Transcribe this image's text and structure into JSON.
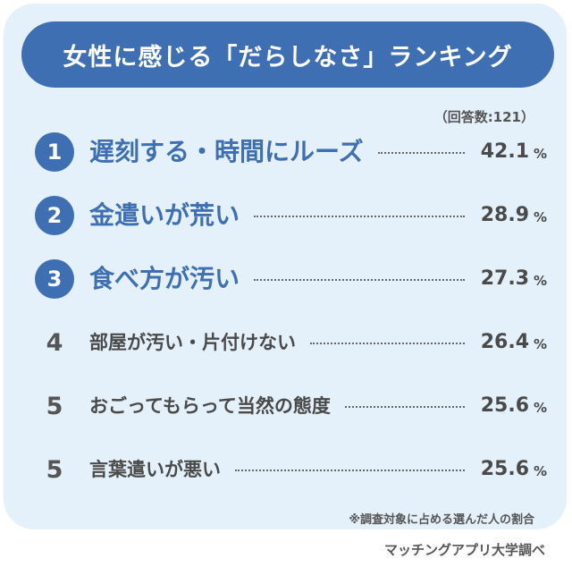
{
  "chart_data": {
    "type": "bar",
    "title": "女性に感じる「だらしなさ」ランキング",
    "respondents_note": "（回答数:121）",
    "unit": "%",
    "categories": [
      "遅刻する・時間にルーズ",
      "金遣いが荒い",
      "食べ方が汚い",
      "部屋が汚い・片付けない",
      "おごってもらって当然の態度",
      "言葉遣いが悪い"
    ],
    "ranks": [
      "1",
      "2",
      "3",
      "4",
      "5",
      "5"
    ],
    "values": [
      42.1,
      28.9,
      27.3,
      26.4,
      25.6,
      25.6
    ],
    "value_labels": [
      "42.1",
      "28.9",
      "27.3",
      "26.4",
      "25.6",
      "25.6"
    ],
    "footnote": "※調査対象に占める選んだ人の割合",
    "source": "マッチングアプリ大学調べ",
    "colors": {
      "banner": "#3f6fb3",
      "card": "#e4f1fa",
      "top_rank": "#3f6fb3",
      "text": "#4a4a4a"
    }
  }
}
